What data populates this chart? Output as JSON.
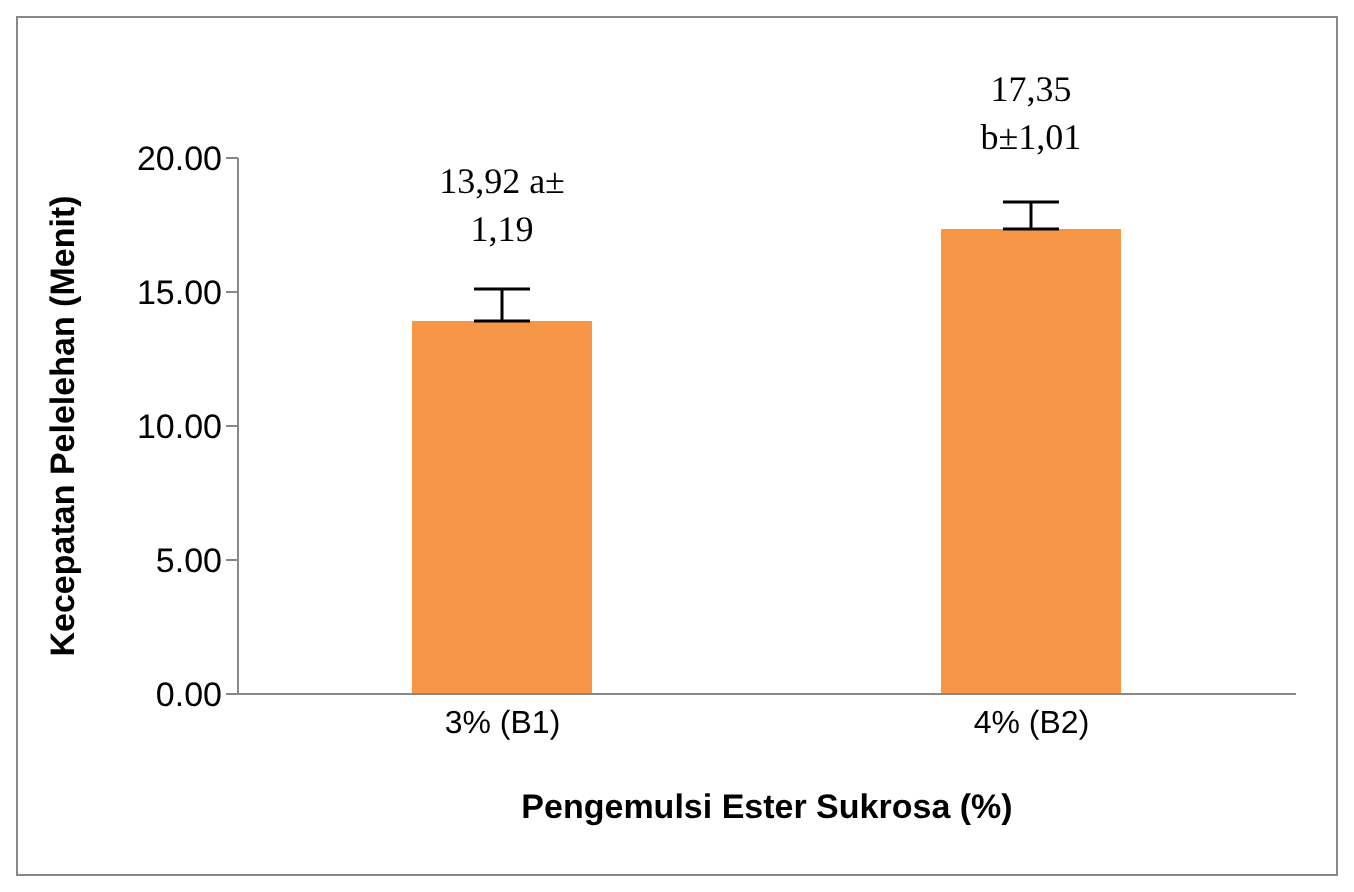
{
  "chart_data": {
    "type": "bar",
    "xlabel": "Pengemulsi Ester Sukrosa (%)",
    "ylabel": "Kecepatan Pelelehan (Menit)",
    "categories": [
      "3% (B1)",
      "4% (B2)"
    ],
    "values": [
      13.92,
      17.35
    ],
    "color": "#f79646",
    "errors": [
      [
        13.92,
        15.11
      ],
      [
        17.35,
        18.36
      ]
    ],
    "value_labels": [
      "13,92 a±\n1,19",
      "17,35\nb±1,01"
    ],
    "ylim": [
      0,
      20
    ],
    "yticks": [
      {
        "value": 0,
        "label": "0.00"
      },
      {
        "value": 5,
        "label": "5.00"
      },
      {
        "value": 10,
        "label": "10.00"
      },
      {
        "value": 15,
        "label": "15.00"
      },
      {
        "value": 20,
        "label": "20.00"
      }
    ],
    "grid": false,
    "legend": false
  }
}
